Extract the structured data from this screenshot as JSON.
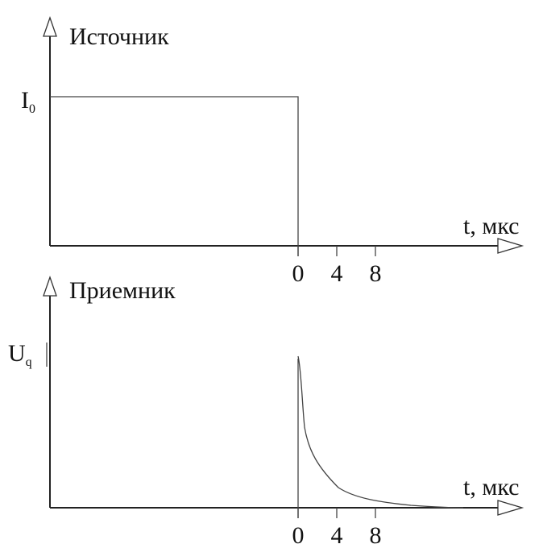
{
  "panels": [
    {
      "title": "Источник",
      "y_label": {
        "text": "I",
        "subscript": "0"
      },
      "x_label": "t, мкс",
      "ticks": [
        0,
        4,
        8
      ]
    },
    {
      "title": "Приемник",
      "y_label": {
        "text": "U",
        "subscript": "q"
      },
      "x_label": "t, мкс",
      "ticks": [
        0,
        4,
        8
      ]
    }
  ]
}
